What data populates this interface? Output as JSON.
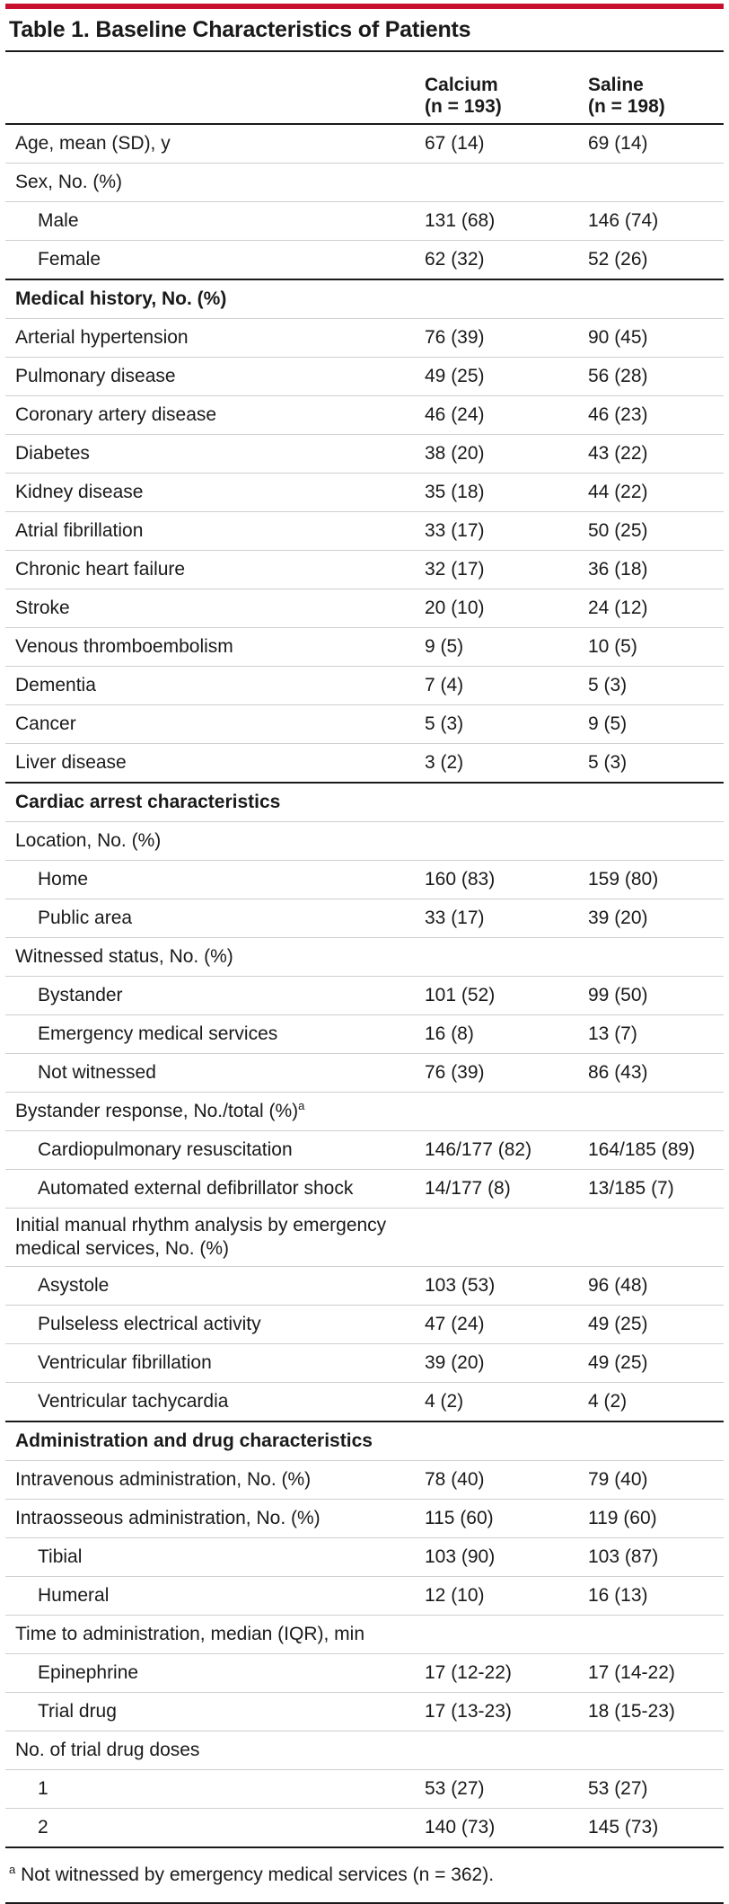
{
  "title": "Table 1. Baseline Characteristics of Patients",
  "columns": [
    {
      "name": "Calcium",
      "n": "(n = 193)"
    },
    {
      "name": "Saline",
      "n": "(n = 198)"
    }
  ],
  "rows": [
    {
      "label": "Age, mean (SD), y",
      "calcium": "67 (14)",
      "saline": "69 (14)"
    },
    {
      "label": "Sex, No. (%)",
      "calcium": "",
      "saline": ""
    },
    {
      "label": "Male",
      "calcium": "131 (68)",
      "saline": "146 (74)"
    },
    {
      "label": "Female",
      "calcium": "62 (32)",
      "saline": "52 (26)"
    },
    {
      "label": "Medical history, No. (%)",
      "calcium": "",
      "saline": ""
    },
    {
      "label": "Arterial hypertension",
      "calcium": "76 (39)",
      "saline": "90 (45)"
    },
    {
      "label": "Pulmonary disease",
      "calcium": "49 (25)",
      "saline": "56 (28)"
    },
    {
      "label": "Coronary artery disease",
      "calcium": "46 (24)",
      "saline": "46 (23)"
    },
    {
      "label": "Diabetes",
      "calcium": "38 (20)",
      "saline": "43 (22)"
    },
    {
      "label": "Kidney disease",
      "calcium": "35 (18)",
      "saline": "44 (22)"
    },
    {
      "label": "Atrial fibrillation",
      "calcium": "33 (17)",
      "saline": "50 (25)"
    },
    {
      "label": "Chronic heart failure",
      "calcium": "32 (17)",
      "saline": "36 (18)"
    },
    {
      "label": "Stroke",
      "calcium": "20 (10)",
      "saline": "24 (12)"
    },
    {
      "label": "Venous thromboembolism",
      "calcium": "9 (5)",
      "saline": "10 (5)"
    },
    {
      "label": "Dementia",
      "calcium": "7 (4)",
      "saline": "5 (3)"
    },
    {
      "label": "Cancer",
      "calcium": "5 (3)",
      "saline": "9 (5)"
    },
    {
      "label": "Liver disease",
      "calcium": "3 (2)",
      "saline": "5 (3)"
    },
    {
      "label": "Cardiac arrest characteristics",
      "calcium": "",
      "saline": ""
    },
    {
      "label": "Location, No. (%)",
      "calcium": "",
      "saline": ""
    },
    {
      "label": "Home",
      "calcium": "160 (83)",
      "saline": "159 (80)"
    },
    {
      "label": "Public area",
      "calcium": "33 (17)",
      "saline": "39 (20)"
    },
    {
      "label": "Witnessed status, No. (%)",
      "calcium": "",
      "saline": ""
    },
    {
      "label": "Bystander",
      "calcium": "101 (52)",
      "saline": "99 (50)"
    },
    {
      "label": "Emergency medical services",
      "calcium": "16 (8)",
      "saline": "13 (7)"
    },
    {
      "label": "Not witnessed",
      "calcium": "76 (39)",
      "saline": "86 (43)"
    },
    {
      "label": "Bystander response, No./total (%)",
      "sup": "a",
      "calcium": "",
      "saline": ""
    },
    {
      "label": "Cardiopulmonary resuscitation",
      "calcium": "146/177 (82)",
      "saline": "164/185 (89)"
    },
    {
      "label": "Automated external defibrillator shock",
      "calcium": "14/177 (8)",
      "saline": "13/185 (7)"
    },
    {
      "label": "Initial manual rhythm analysis by emergency medical services, No. (%)",
      "calcium": "",
      "saline": ""
    },
    {
      "label": "Asystole",
      "calcium": "103 (53)",
      "saline": "96 (48)"
    },
    {
      "label": "Pulseless electrical activity",
      "calcium": "47 (24)",
      "saline": "49 (25)"
    },
    {
      "label": "Ventricular fibrillation",
      "calcium": "39 (20)",
      "saline": "49 (25)"
    },
    {
      "label": "Ventricular tachycardia",
      "calcium": "4 (2)",
      "saline": "4 (2)"
    },
    {
      "label": "Administration and drug characteristics",
      "calcium": "",
      "saline": ""
    },
    {
      "label": "Intravenous administration, No. (%)",
      "calcium": "78 (40)",
      "saline": "79 (40)"
    },
    {
      "label": "Intraosseous administration, No. (%)",
      "calcium": "115 (60)",
      "saline": "119 (60)"
    },
    {
      "label": "Tibial",
      "calcium": "103 (90)",
      "saline": "103 (87)"
    },
    {
      "label": "Humeral",
      "calcium": "12 (10)",
      "saline": "16 (13)"
    },
    {
      "label": "Time to administration, median (IQR), min",
      "calcium": "",
      "saline": ""
    },
    {
      "label": "Epinephrine",
      "calcium": "17 (12-22)",
      "saline": "17 (14-22)"
    },
    {
      "label": "Trial drug",
      "calcium": "17 (13-23)",
      "saline": "18 (15-23)"
    },
    {
      "label": "No. of trial drug doses",
      "calcium": "",
      "saline": ""
    },
    {
      "label": "1",
      "calcium": "53 (27)",
      "saline": "53 (27)"
    },
    {
      "label": "2",
      "calcium": "140 (73)",
      "saline": "145 (73)"
    }
  ],
  "footnote": {
    "marker": "a",
    "text": "Not witnessed by emergency medical services (n = 362)."
  }
}
